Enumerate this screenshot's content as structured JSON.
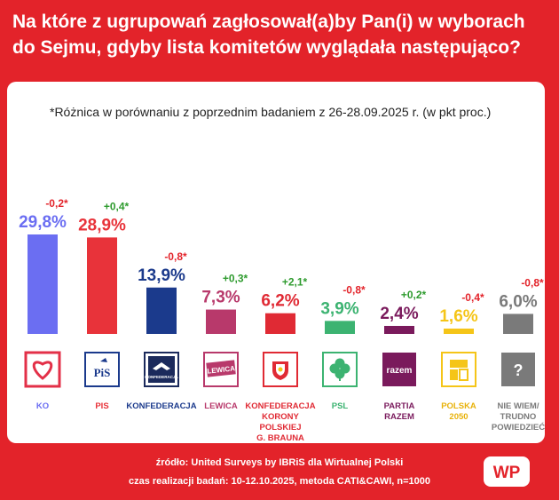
{
  "header": {
    "title": "Na które z ugrupowań zagłosował(a)by Pan(i) w wyborach do Sejmu, gdyby lista komitetów wyglądała następująco?"
  },
  "note": "*Różnica w porównaniu z poprzednim badaniem z 26-28.09.2025 r. (w pkt proc.)",
  "colors": {
    "background": "#e3232a",
    "positive": "#2e9b2e",
    "negative": "#e3232a"
  },
  "chart_data": {
    "type": "bar",
    "title": "",
    "xlabel": "",
    "ylabel": "",
    "ylim": [
      0,
      32
    ],
    "grid": false,
    "legend": "none",
    "categories": [
      "KO",
      "PIS",
      "KONFEDERACJA",
      "LEWICA",
      "KONFEDERACJA KORONY POLSKIEJ G. BRAUNA",
      "PSL",
      "PARTIA RAZEM",
      "POLSKA 2050",
      "NIE WIEM/ TRUDNO POWIEDZIEĆ"
    ],
    "values": [
      29.8,
      28.9,
      13.9,
      7.3,
      6.2,
      3.9,
      2.4,
      1.6,
      6.0
    ],
    "value_labels": [
      "29,8%",
      "28,9%",
      "13,9%",
      "7,3%",
      "6,2%",
      "3,9%",
      "2,4%",
      "1,6%",
      "6,0%"
    ],
    "changes": [
      "-0,2*",
      "+0,4*",
      "-0,8*",
      "+0,3*",
      "+2,1*",
      "-0,8*",
      "+0,2*",
      "-0,4*",
      "-0,8*"
    ],
    "colors": [
      "#6b6ef2",
      "#e8333a",
      "#1b3a8c",
      "#b8396b",
      "#e02a34",
      "#3cb371",
      "#7a1a5c",
      "#f5c518",
      "#7a7a7a"
    ],
    "label_lines": [
      [
        "KO"
      ],
      [
        "PIS"
      ],
      [
        "KONFEDERACJA"
      ],
      [
        "LEWICA"
      ],
      [
        "KONFEDERACJA",
        "KORONY",
        "POLSKIEJ",
        "G. BRAUNA"
      ],
      [
        "PSL"
      ],
      [
        "PARTIA",
        "RAZEM"
      ],
      [
        "POLSKA",
        "2050"
      ],
      [
        "NIE WIEM/",
        "TRUDNO",
        "POWIEDZIEĆ"
      ]
    ],
    "logos": [
      {
        "icon": "heart-icon",
        "text": ""
      },
      {
        "icon": "pis-logo",
        "text": "PiS"
      },
      {
        "icon": "konfederacja-logo",
        "text": "KONFEDERACJA"
      },
      {
        "icon": "lewica-logo",
        "text": "LEWICA"
      },
      {
        "icon": "crown-shield-logo",
        "text": ""
      },
      {
        "icon": "clover-icon",
        "text": ""
      },
      {
        "icon": "razem-logo",
        "text": "razem"
      },
      {
        "icon": "polska2050-logo",
        "text": ""
      },
      {
        "icon": "question-icon",
        "text": "?"
      }
    ]
  },
  "footer": {
    "source": "źródło: United Surveys by IBRiS dla Wirtualnej Polski",
    "method": "czas realizacji badań: 10-12.10.2025, metoda CATI&CAWI, n=1000",
    "brand": "WP"
  }
}
